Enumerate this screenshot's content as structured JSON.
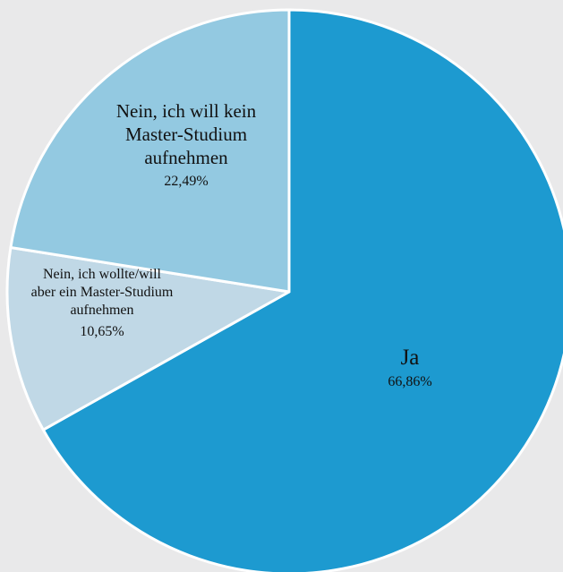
{
  "chart_data": {
    "type": "pie",
    "title": "",
    "slices": [
      {
        "label_lines": [
          "Ja"
        ],
        "value": 66.86,
        "value_label": "66,86%",
        "color": "#1d9ad0"
      },
      {
        "label_lines": [
          "Nein, ich wollte/will",
          "aber ein Master-Studium",
          "aufnehmen"
        ],
        "value": 10.65,
        "value_label": "10,65%",
        "color": "#c0d8e6"
      },
      {
        "label_lines": [
          "Nein, ich will kein",
          "Master-Studium",
          "aufnehmen"
        ],
        "value": 22.49,
        "value_label": "22,49%",
        "color": "#93c9e1"
      }
    ],
    "start_angle_deg": 0,
    "direction": "clockwise",
    "legend": "none"
  },
  "colors": {
    "background": "#e9e9ea",
    "slice_border": "#ffffff"
  }
}
